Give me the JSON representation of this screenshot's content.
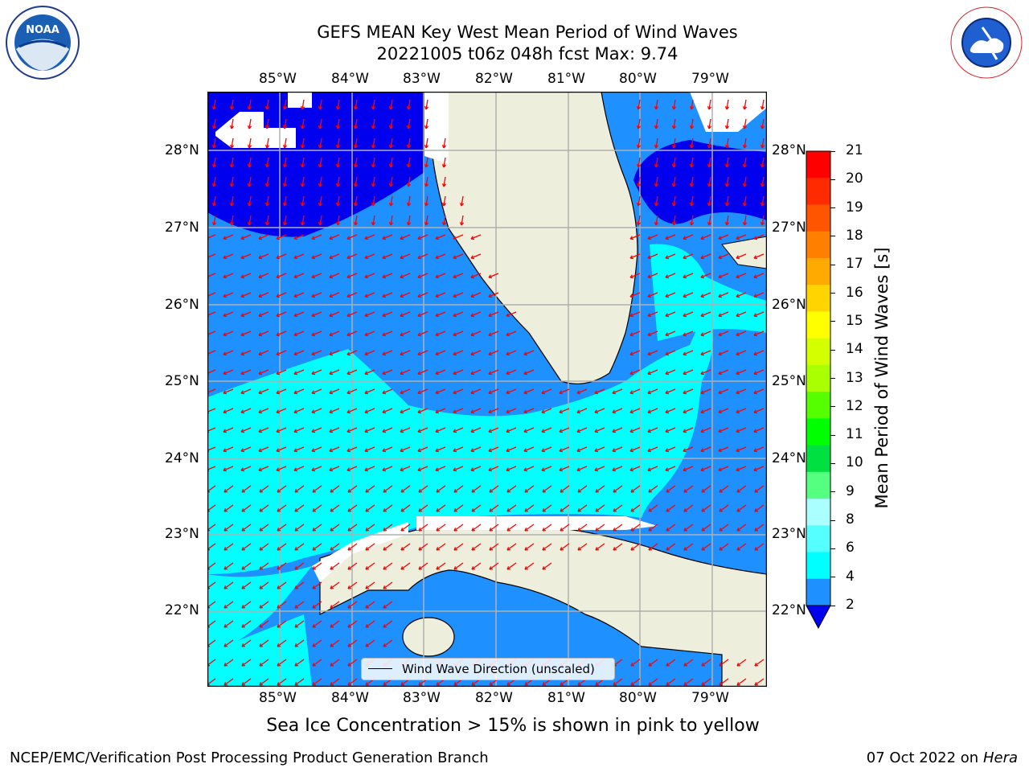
{
  "title": {
    "line1": "GEFS MEAN Key West Mean Period of Wind Waves",
    "line2": "20221005 t06z 048h fcst   Max: 9.74"
  },
  "logos": {
    "left": {
      "name": "NOAA",
      "ring_text": "NATIONAL OCEANIC AND ATMOSPHERIC ADMINISTRATION · U.S. DEPARTMENT OF COMMERCE"
    },
    "right": {
      "name": "NATIONAL WEATHER SERVICE"
    }
  },
  "map": {
    "lon_labels": [
      "85°W",
      "84°W",
      "83°W",
      "82°W",
      "81°W",
      "80°W",
      "79°W"
    ],
    "lat_labels": [
      "28°N",
      "27°N",
      "26°N",
      "25°N",
      "24°N",
      "23°N",
      "22°N"
    ],
    "legend_label": "Wind Wave Direction (unscaled)",
    "colors": {
      "land": "#eeeedd",
      "ocean_dark": "#0000ee",
      "ocean_mid": "#1e90ff",
      "ocean_light": "#00ffff",
      "arrow": "#ff0000",
      "grid": "#b0b0b0"
    }
  },
  "colorbar": {
    "label": "Mean Period of Wind Waves [s]",
    "ticks": [
      "21",
      "20",
      "19",
      "18",
      "17",
      "16",
      "15",
      "14",
      "13",
      "12",
      "11",
      "10",
      "9",
      "8",
      "6",
      "4",
      "2"
    ],
    "colors": [
      "#ff0000",
      "#ff2a00",
      "#ff5500",
      "#ff7f00",
      "#ffaa00",
      "#ffd400",
      "#ffff00",
      "#d4ff00",
      "#aaff00",
      "#55ff00",
      "#00ff00",
      "#00e040",
      "#55ff80",
      "#aaffff",
      "#55ffff",
      "#00ffff",
      "#1e90ff",
      "#0000ee"
    ]
  },
  "footer": {
    "note": "Sea Ice Concentration > 15% is shown in pink to yellow",
    "credit": "NCEP/EMC/Verification Post Processing Product Generation Branch",
    "date": "07 Oct 2022 on",
    "machine": "Hera"
  }
}
